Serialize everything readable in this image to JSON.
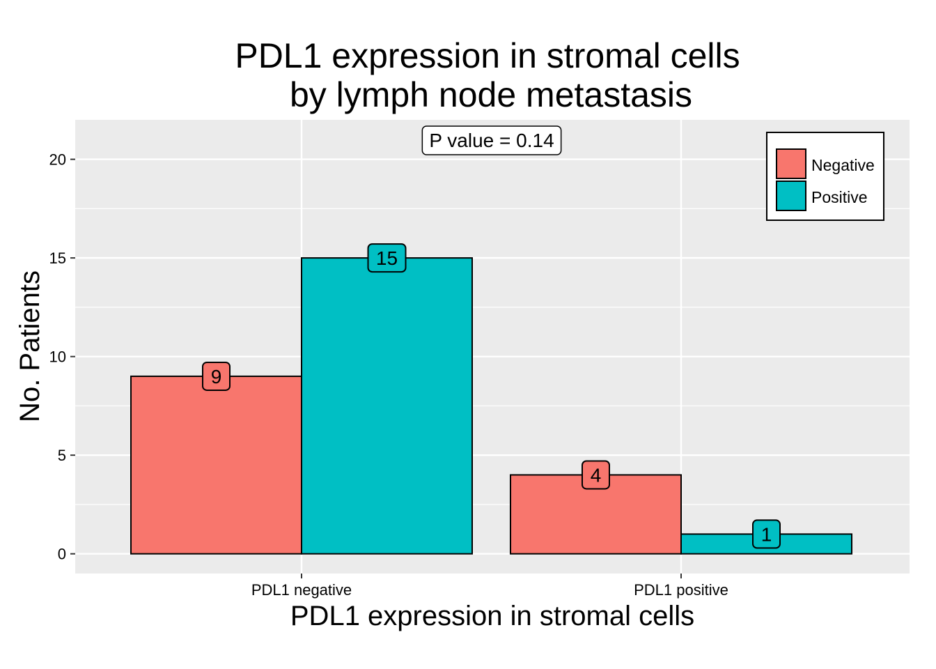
{
  "chart_data": {
    "type": "bar",
    "title": [
      "PDL1 expression in stromal cells",
      "by lymph node metastasis"
    ],
    "xlabel": "PDL1 expression in stromal cells",
    "ylabel": "No. Patients",
    "categories": [
      "PDL1 negative",
      "PDL1 positive"
    ],
    "series": [
      {
        "name": "Negative",
        "color": "#F8766D",
        "values": [
          9,
          4
        ]
      },
      {
        "name": "Positive",
        "color": "#00BFC4",
        "values": [
          15,
          1
        ]
      }
    ],
    "ylim": [
      -1,
      22
    ],
    "yticks": [
      0,
      5,
      10,
      15,
      20
    ],
    "yticks_minor": [
      2.5,
      7.5,
      12.5,
      17.5
    ],
    "annotation": "P value = 0.14",
    "legend_position": "top-right",
    "grid": true,
    "panel_color": "#EBEBEB",
    "grid_color": "#FFFFFF"
  }
}
